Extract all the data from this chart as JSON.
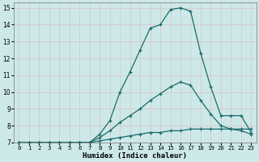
{
  "xlabel": "Humidex (Indice chaleur)",
  "xlim": [
    -0.5,
    23.5
  ],
  "ylim": [
    7,
    15.3
  ],
  "x_ticks": [
    0,
    1,
    2,
    3,
    4,
    5,
    6,
    7,
    8,
    9,
    10,
    11,
    12,
    13,
    14,
    15,
    16,
    17,
    18,
    19,
    20,
    21,
    22,
    23
  ],
  "y_ticks": [
    7,
    8,
    9,
    10,
    11,
    12,
    13,
    14,
    15
  ],
  "background_color": "#cde8e8",
  "grid_color": "#d8c8c8",
  "line_color": "#1a6b6b",
  "series": {
    "top_x": [
      0,
      1,
      2,
      3,
      4,
      5,
      6,
      7,
      8,
      9,
      10,
      11,
      12,
      13,
      14,
      15,
      16,
      17,
      18,
      19,
      20,
      21,
      22,
      23
    ],
    "top_y": [
      7,
      7,
      7,
      7,
      7,
      7,
      7,
      7,
      7.5,
      8.3,
      10.0,
      11.2,
      12.5,
      13.8,
      14.0,
      14.9,
      15.0,
      14.8,
      12.3,
      10.3,
      8.6,
      8.6,
      8.6,
      7.6
    ],
    "mid_x": [
      0,
      1,
      2,
      3,
      4,
      5,
      6,
      7,
      8,
      9,
      10,
      11,
      12,
      13,
      14,
      15,
      16,
      17,
      18,
      19,
      20,
      21,
      22,
      23
    ],
    "mid_y": [
      7,
      7,
      7,
      7,
      7,
      7,
      7,
      7,
      7.3,
      7.7,
      8.2,
      8.6,
      9.0,
      9.5,
      9.9,
      10.3,
      10.6,
      10.4,
      9.5,
      8.7,
      8.0,
      7.8,
      7.7,
      7.5
    ],
    "bot_x": [
      0,
      1,
      2,
      3,
      4,
      5,
      6,
      7,
      8,
      9,
      10,
      11,
      12,
      13,
      14,
      15,
      16,
      17,
      18,
      19,
      20,
      21,
      22,
      23
    ],
    "bot_y": [
      7,
      7,
      7,
      7,
      7,
      7,
      7,
      7,
      7.1,
      7.2,
      7.3,
      7.4,
      7.5,
      7.6,
      7.6,
      7.7,
      7.7,
      7.8,
      7.8,
      7.8,
      7.8,
      7.8,
      7.8,
      7.8
    ]
  }
}
